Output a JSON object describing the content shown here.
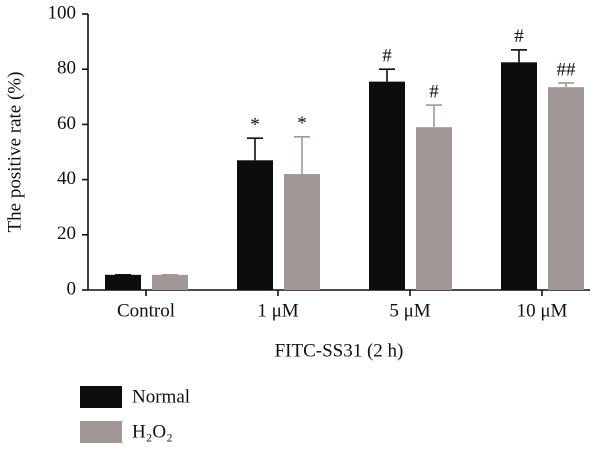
{
  "chart_data": {
    "type": "bar",
    "ylabel": "The positive rate (%)",
    "xlabel": "FITC-SS31 (2 h)",
    "categories": [
      "Control",
      "1 μM",
      "5 μM",
      "10 μM"
    ],
    "series": [
      {
        "name": "Normal",
        "color": "#0d0d0d",
        "values": [
          5.5,
          47,
          75.5,
          82.5
        ],
        "errors": [
          0,
          8,
          4.5,
          4.5
        ],
        "annotations": [
          null,
          "*",
          "#",
          "#"
        ]
      },
      {
        "name": "H₂O₂",
        "color": "#a09796",
        "values": [
          5.5,
          42,
          59,
          73.5
        ],
        "errors": [
          0,
          13.5,
          8,
          1.5
        ],
        "annotations": [
          null,
          "*",
          "#",
          "##"
        ]
      }
    ],
    "ylim": [
      0,
      100
    ],
    "yticks": [
      0,
      20,
      40,
      60,
      80,
      100
    ],
    "grid": false
  }
}
